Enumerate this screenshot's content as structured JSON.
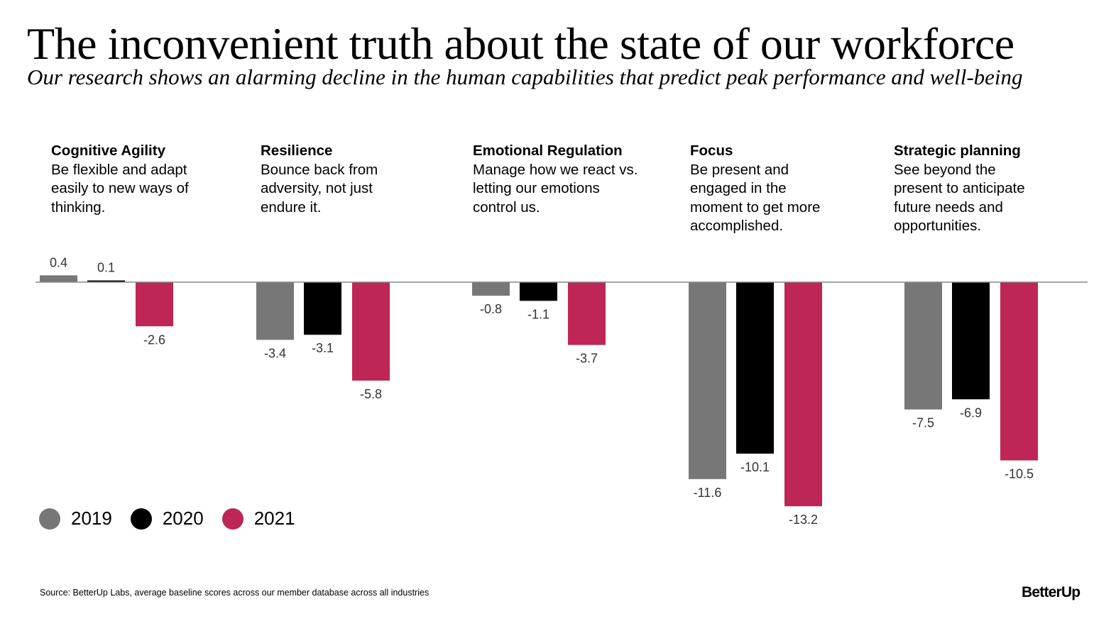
{
  "title": "The inconvenient truth about the state of our workforce",
  "subtitle": "Our research shows an alarming decline in the human capabilities that predict peak performance and well-being",
  "source": "Source: BetterUp Labs, average baseline scores across our member database across all industries",
  "logo": "BetterUp",
  "colors": {
    "2019": "#777777",
    "2020": "#000000",
    "2021": "#be2656",
    "axis": "#888888"
  },
  "chart_data": {
    "type": "bar",
    "categories": [
      "Cognitive Agility",
      "Resilience",
      "Emotional Regulation",
      "Focus",
      "Strategic planning"
    ],
    "descriptions": [
      "Be flexible and adapt easily to new ways of thinking.",
      "Bounce back from adversity, not just endure it.",
      "Manage how we react vs. letting our emotions control us.",
      "Be present and engaged in the moment to get more accomplished.",
      "See beyond the present to anticipate future needs and opportunities."
    ],
    "series": [
      {
        "name": "2019",
        "values": [
          0.4,
          -3.4,
          -0.8,
          -11.6,
          -7.5
        ]
      },
      {
        "name": "2020",
        "values": [
          0.1,
          -3.1,
          -1.1,
          -10.1,
          -6.9
        ]
      },
      {
        "name": "2021",
        "values": [
          -2.6,
          -5.8,
          -3.7,
          -13.2,
          -10.5
        ]
      }
    ],
    "legend_position": "bottom-left",
    "grid": false,
    "data_labels": true
  }
}
